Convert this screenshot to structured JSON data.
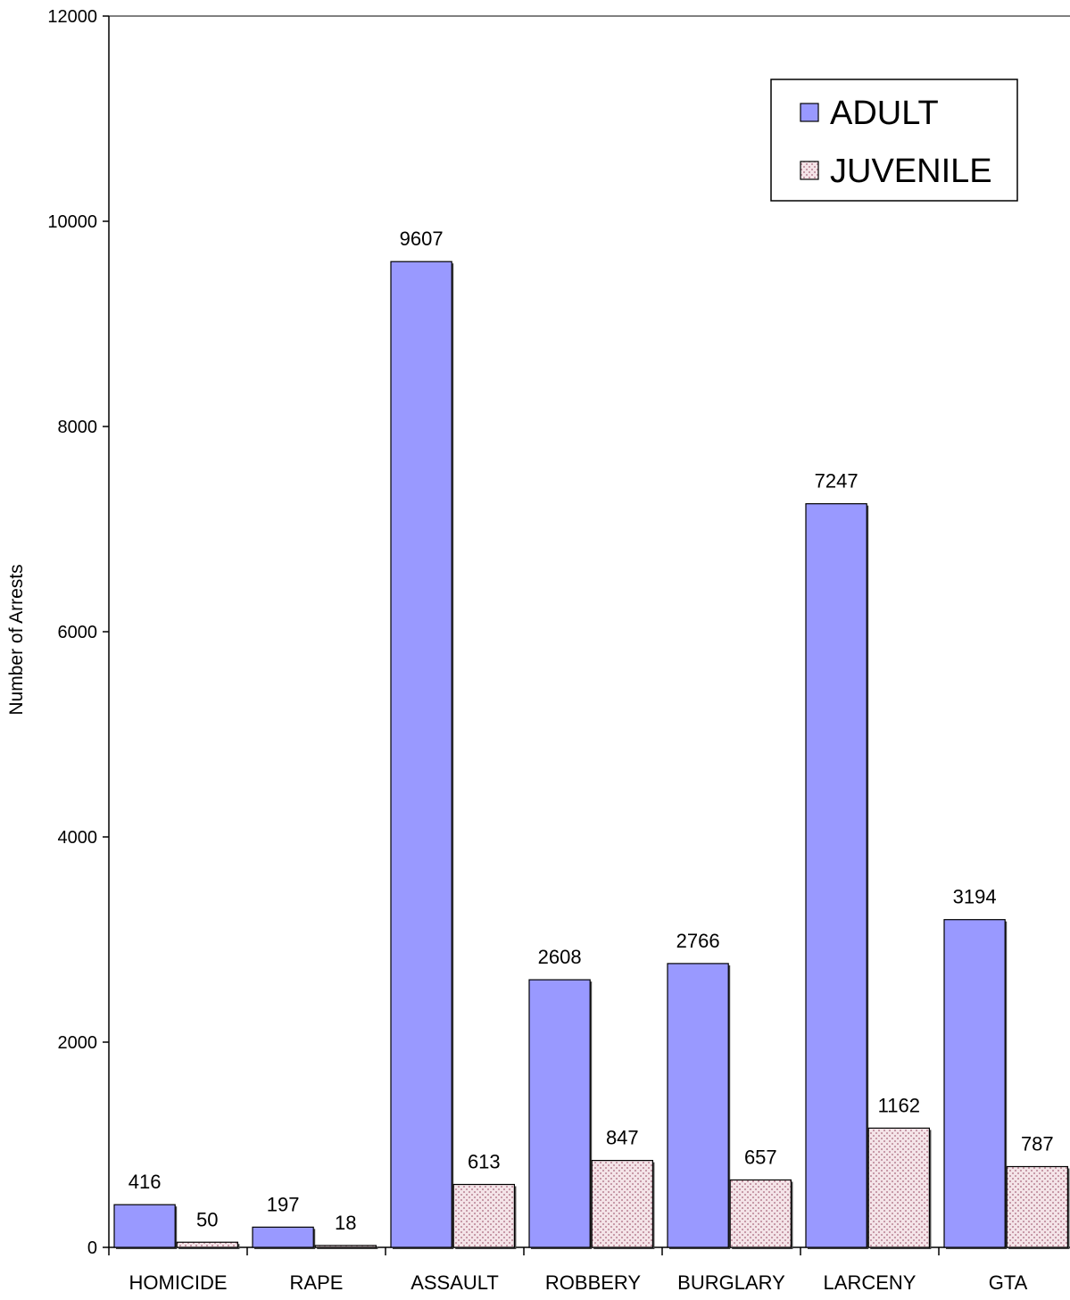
{
  "chart_data": {
    "type": "bar",
    "title": "",
    "xlabel": "",
    "ylabel": "Number of Arrests",
    "ylim": [
      0,
      12000
    ],
    "yticks": [
      0,
      2000,
      4000,
      6000,
      8000,
      10000,
      12000
    ],
    "grid": false,
    "legend_position": "top-right",
    "categories": [
      "HOMICIDE",
      "RAPE",
      "ASSAULT",
      "ROBBERY",
      "BURGLARY",
      "LARCENY",
      "GTA"
    ],
    "series": [
      {
        "name": "ADULT",
        "color": "#9999ff",
        "pattern": "solid",
        "values": [
          416,
          197,
          9607,
          2608,
          2766,
          7247,
          3194
        ]
      },
      {
        "name": "JUVENILE",
        "color": "#f4e4e8",
        "pattern": "dotted",
        "pattern_color": "#c79aa8",
        "values": [
          50,
          18,
          613,
          847,
          657,
          1162,
          787
        ]
      }
    ]
  }
}
